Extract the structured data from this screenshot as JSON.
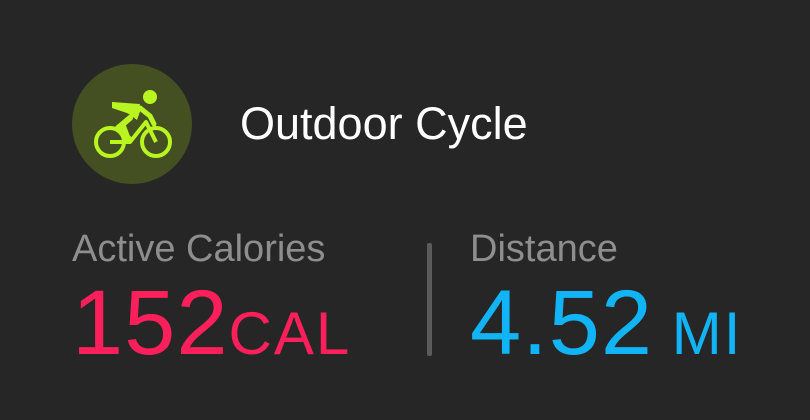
{
  "workout": {
    "title": "Outdoor Cycle",
    "icon": "cyclist-icon",
    "icon_color": "#b8f521",
    "icon_bg": "#445021"
  },
  "stats": {
    "calories": {
      "label": "Active Calories",
      "value": "152",
      "unit": "CAL",
      "color": "#ff1f5a"
    },
    "distance": {
      "label": "Distance",
      "value": "4.52",
      "unit": " MI",
      "color": "#10b4f7"
    }
  }
}
